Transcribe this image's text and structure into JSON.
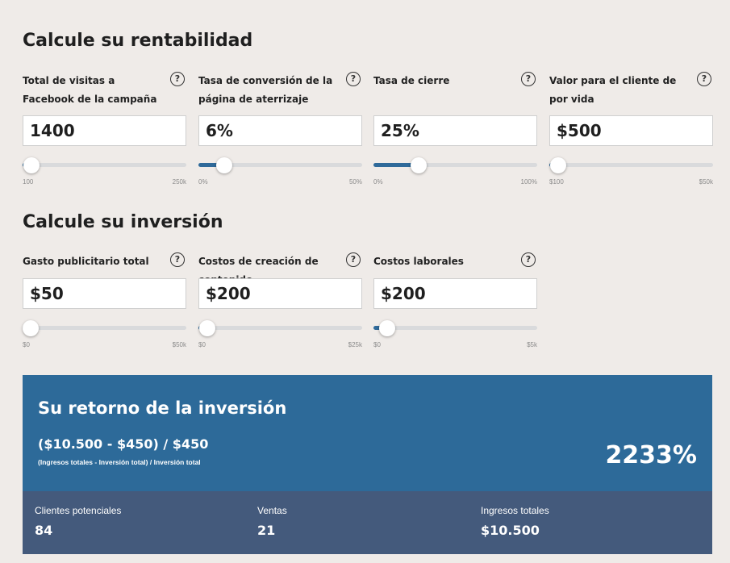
{
  "profitability": {
    "title": "Calcule su rentabilidad",
    "fields": [
      {
        "label": "Total de visitas a Facebook de la campaña",
        "value": "1400",
        "min_label": "100",
        "max_label": "250k",
        "level": 0.005
      },
      {
        "label": "Tasa de conversión de la página de aterrizaje",
        "value": "6%",
        "min_label": "0%",
        "max_label": "50%",
        "level": 0.12
      },
      {
        "label": "Tasa de cierre",
        "value": "25%",
        "min_label": "0%",
        "max_label": "100%",
        "level": 0.25
      },
      {
        "label": "Valor para el cliente de por vida",
        "value": "$500",
        "min_label": "$100",
        "max_label": "$50k",
        "level": 0.008
      }
    ]
  },
  "investment": {
    "title": "Calcule su inversión",
    "fields": [
      {
        "label": "Gasto publicitario total",
        "value": "$50",
        "min_label": "$0",
        "max_label": "$50k",
        "level": 0.001
      },
      {
        "label": "Costos de creación de contenido",
        "value": "$200",
        "min_label": "$0",
        "max_label": "$25k",
        "level": 0.008
      },
      {
        "label": "Costos laborales",
        "value": "$200",
        "min_label": "$0",
        "max_label": "$5k",
        "level": 0.04
      }
    ]
  },
  "results": {
    "title": "Su retorno de la inversión",
    "formula": "($10.500 - $450) / $450",
    "formula_caption": "(Ingresos totales - Inversión total) / Inversión total",
    "roi": "2233%",
    "stats": [
      {
        "label": "Clientes potenciales",
        "value": "84"
      },
      {
        "label": "Ventas",
        "value": "21"
      },
      {
        "label": "Ingresos totales",
        "value": "$10.500"
      }
    ]
  },
  "icons": {
    "help": "?"
  },
  "colors": {
    "background": "#efebe8",
    "accent": "#2d6a99",
    "stats_bg": "#445a7c",
    "slider_track": "#d9dadc",
    "slider_fill": "#2f6a9a"
  }
}
